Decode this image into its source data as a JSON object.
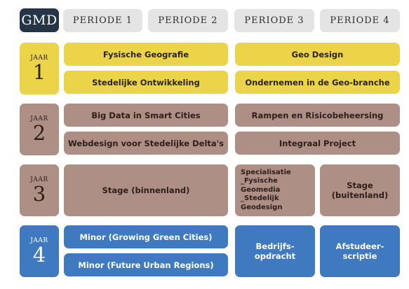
{
  "logo": "GMD",
  "periods": [
    "PERIODE 1",
    "PERIODE 2",
    "PERIODE 3",
    "PERIODE 4"
  ],
  "years": [
    {
      "label": "JAAR",
      "number": "1"
    },
    {
      "label": "JAAR",
      "number": "2"
    },
    {
      "label": "JAAR",
      "number": "3"
    },
    {
      "label": "JAAR",
      "number": "4"
    }
  ],
  "courses": {
    "fysische_geografie": "Fysische Geografie",
    "geo_design": "Geo Design",
    "stedelijke_ontwikkeling": "Stedelijke Ontwikkeling",
    "ondernemen": "Ondernemen in de Geo-branche",
    "big_data": "Big Data in Smart Cities",
    "rampen": "Rampen en Risicobeheersing",
    "webdesign": "Webdesign voor Stedelijke Delta's",
    "integraal": "Integraal Project",
    "stage_binnen": "Stage (binnenland)",
    "specialisatie": [
      "Specialisatie",
      "_Fysische Geomedia",
      "_Stedelijk Geodesign"
    ],
    "stage_buiten": [
      "Stage",
      "(buitenland)"
    ],
    "minor_green": "Minor (Growing Green Cities)",
    "minor_urban": "Minor (Future Urban Regions)",
    "bedrijfsopdracht": [
      "Bedrijfs-",
      "opdracht"
    ],
    "afstudeerscriptie": [
      "Afstudeer-",
      "scriptie"
    ]
  },
  "colors": {
    "logo": "#253545",
    "period": "#e4e4e4",
    "year1": "#ecd448",
    "year2_3": "#ad8f86",
    "year4": "#3f7ac0"
  }
}
